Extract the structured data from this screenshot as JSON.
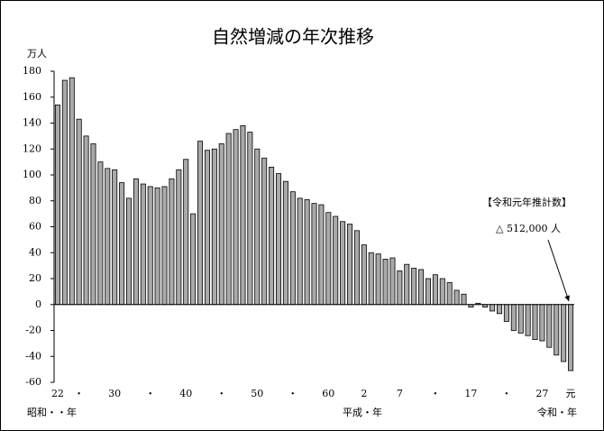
{
  "chart_data": {
    "type": "bar",
    "title": "自然増減の年次推移",
    "y_unit": "万人",
    "categories": [
      "22",
      null,
      null,
      "・",
      null,
      null,
      null,
      null,
      "30",
      null,
      null,
      null,
      null,
      "・",
      null,
      null,
      null,
      null,
      "40",
      null,
      null,
      null,
      null,
      "・",
      null,
      null,
      null,
      null,
      "50",
      null,
      null,
      null,
      null,
      "・",
      null,
      null,
      null,
      null,
      "60",
      null,
      null,
      null,
      null,
      "2",
      null,
      null,
      null,
      null,
      "7",
      null,
      null,
      null,
      null,
      "・",
      null,
      null,
      null,
      null,
      "17",
      null,
      null,
      null,
      null,
      "・",
      null,
      null,
      null,
      null,
      "27",
      null,
      null,
      null,
      "元"
    ],
    "values": [
      154,
      173,
      175,
      143,
      130,
      124,
      110,
      105,
      104,
      94,
      82,
      97,
      93,
      91,
      90,
      91,
      97,
      104,
      112,
      70,
      126,
      119,
      120,
      124,
      132,
      135,
      138,
      133,
      120,
      113,
      106,
      101,
      95,
      87,
      82,
      81,
      78,
      77,
      71,
      68,
      64,
      62,
      57,
      46,
      40,
      39,
      35,
      36,
      26,
      31,
      28,
      27,
      20,
      23,
      20,
      17,
      11,
      8,
      -2,
      1,
      -2,
      -5,
      -7,
      -13,
      -20,
      -22,
      -24,
      -27,
      -28,
      -33,
      -39,
      -44,
      -51
    ],
    "color": "#a9a9a9",
    "ylim": [
      -60,
      180
    ],
    "yticks": [
      -60,
      -40,
      -20,
      0,
      20,
      40,
      60,
      80,
      100,
      120,
      140,
      160,
      180
    ],
    "grid": false,
    "era_labels": [
      "昭和・・年",
      "平成・年",
      "令和・年"
    ],
    "annotation_title": "【令和元年推計数】",
    "annotation_text": "△ 512,000 人"
  }
}
